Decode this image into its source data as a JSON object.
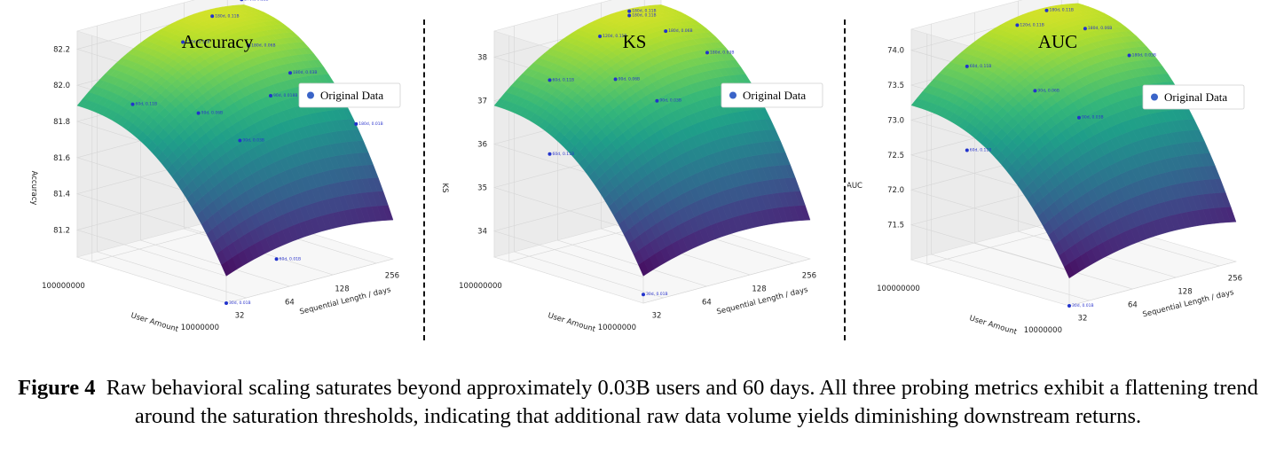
{
  "chart_data": [
    {
      "type": "surface3d",
      "title": "Accuracy",
      "zlabel": "Accuracy",
      "xlabel": "Sequential Length / days",
      "ylabel": "User Amount",
      "x_ticks": [
        "32",
        "64",
        "128",
        "256"
      ],
      "y_ticks": [
        "10000000",
        "100000000"
      ],
      "z_ticks": [
        "81.2",
        "81.4",
        "81.6",
        "81.8",
        "82.0",
        "82.2"
      ],
      "zlim": [
        81.05,
        82.3
      ],
      "legend": "Original Data",
      "legend_position": "upper-right",
      "colormap": "viridis",
      "points": [
        {
          "label": "60d, 0.01B",
          "days": 60,
          "users_b": 0.01,
          "value": 81.22
        },
        {
          "label": "30d, 0.01B",
          "days": 30,
          "users_b": 0.01,
          "value": 81.0
        },
        {
          "label": "60d, 0.11B",
          "days": 60,
          "users_b": 0.11,
          "value": 81.83
        },
        {
          "label": "90d, 0.06B",
          "days": 90,
          "users_b": 0.06,
          "value": 81.8
        },
        {
          "label": "90d, 0.03B",
          "days": 90,
          "users_b": 0.03,
          "value": 81.72
        },
        {
          "label": "90d, 0.018B",
          "days": 90,
          "users_b": 0.018,
          "value": 82.02
        },
        {
          "label": "120d, 0.11B",
          "days": 120,
          "users_b": 0.11,
          "value": 82.1
        },
        {
          "label": "180d, 0.11B",
          "days": 180,
          "users_b": 0.11,
          "value": 82.2
        },
        {
          "label": "270d, 0.11B",
          "days": 270,
          "users_b": 0.11,
          "value": 82.25
        },
        {
          "label": "180d, 0.06B",
          "days": 180,
          "users_b": 0.06,
          "value": 82.1
        },
        {
          "label": "180d, 0.03B",
          "days": 180,
          "users_b": 0.03,
          "value": 82.02
        },
        {
          "label": "180d, 0.01B",
          "days": 180,
          "users_b": 0.01,
          "value": 81.85
        }
      ]
    },
    {
      "type": "surface3d",
      "title": "KS",
      "zlabel": "KS",
      "xlabel": "Sequential Length / days",
      "ylabel": "User Amount",
      "x_ticks": [
        "32",
        "64",
        "128",
        "256"
      ],
      "y_ticks": [
        "10000000",
        "100000000"
      ],
      "z_ticks": [
        "34",
        "35",
        "36",
        "37",
        "38"
      ],
      "zlim": [
        33.4,
        38.6
      ],
      "legend": "Original Data",
      "legend_position": "upper-right",
      "colormap": "viridis",
      "points": [
        {
          "label": "60d, 0.11B",
          "days": 60,
          "users_b": 0.11,
          "value": 35.5
        },
        {
          "label": "30d, 0.01B",
          "days": 30,
          "users_b": 0.01,
          "value": 33.6
        },
        {
          "label": "60d, 0.11B",
          "days": 60,
          "users_b": 0.11,
          "value": 37.2
        },
        {
          "label": "90d, 0.06B",
          "days": 90,
          "users_b": 0.06,
          "value": 37.3
        },
        {
          "label": "90d, 0.03B",
          "days": 90,
          "users_b": 0.03,
          "value": 37.1
        },
        {
          "label": "120d, 0.11B",
          "days": 120,
          "users_b": 0.11,
          "value": 37.9
        },
        {
          "label": "180d, 0.11B",
          "days": 180,
          "users_b": 0.11,
          "value": 38.2
        },
        {
          "label": "180d, 0.11B",
          "days": 180,
          "users_b": 0.11,
          "value": 38.3
        },
        {
          "label": "270d, 0.11B",
          "days": 270,
          "users_b": 0.11,
          "value": 38.5
        },
        {
          "label": "180d, 0.06B",
          "days": 180,
          "users_b": 0.06,
          "value": 38.1
        },
        {
          "label": "180d, 0.03B",
          "days": 180,
          "users_b": 0.03,
          "value": 37.9
        },
        {
          "label": "180d, 0.01B",
          "days": 180,
          "users_b": 0.01,
          "value": 37.6
        }
      ]
    },
    {
      "type": "surface3d",
      "title": "AUC",
      "zlabel": "AUC",
      "xlabel": "Sequential Length / days",
      "ylabel": "User Amount",
      "x_ticks": [
        "32",
        "64",
        "128",
        "256"
      ],
      "y_ticks": [
        "10000000",
        "100000000"
      ],
      "z_ticks": [
        "71.5",
        "72.0",
        "72.5",
        "73.0",
        "73.5",
        "74.0"
      ],
      "zlim": [
        71.0,
        74.3
      ],
      "legend": "Original Data",
      "legend_position": "upper-right",
      "colormap": "viridis",
      "points": [
        {
          "label": "60d, 0.11B",
          "days": 60,
          "users_b": 0.11,
          "value": 72.4
        },
        {
          "label": "30d, 0.01B",
          "days": 30,
          "users_b": 0.01,
          "value": 71.0
        },
        {
          "label": "60d, 0.11B",
          "days": 60,
          "users_b": 0.11,
          "value": 73.6
        },
        {
          "label": "90d, 0.06B",
          "days": 90,
          "users_b": 0.06,
          "value": 73.3
        },
        {
          "label": "90d, 0.03B",
          "days": 90,
          "users_b": 0.03,
          "value": 73.1
        },
        {
          "label": "120d, 0.11B",
          "days": 120,
          "users_b": 0.11,
          "value": 74.0
        },
        {
          "label": "180d, 0.11B",
          "days": 180,
          "users_b": 0.11,
          "value": 74.1
        },
        {
          "label": "270d, 0.11B",
          "days": 270,
          "users_b": 0.11,
          "value": 74.2
        },
        {
          "label": "180d, 0.06B",
          "days": 180,
          "users_b": 0.06,
          "value": 74.0
        },
        {
          "label": "180d, 0.03B",
          "days": 180,
          "users_b": 0.03,
          "value": 73.8
        },
        {
          "label": "180d, 0.01B",
          "days": 180,
          "users_b": 0.01,
          "value": 73.5
        }
      ]
    }
  ],
  "caption": {
    "label": "Figure 4",
    "text": "Raw behavioral scaling saturates beyond approximately 0.03B users and 60 days. All three probing metrics exhibit a flattening trend around the saturation thresholds, indicating that additional raw data volume yields diminishing downstream returns."
  }
}
